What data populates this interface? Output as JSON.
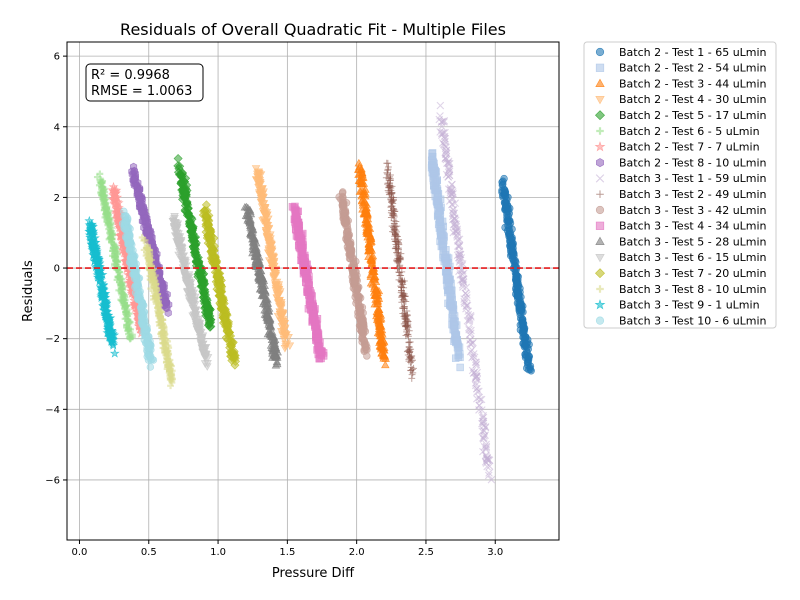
{
  "chart_data": {
    "type": "scatter",
    "title": "Residuals of Overall Quadratic Fit - Multiple Files",
    "xlabel": "Pressure Diff",
    "ylabel": "Residuals",
    "xlim": [
      -0.09,
      3.46
    ],
    "ylim": [
      -7.7,
      6.4
    ],
    "xticks": [
      0.0,
      0.5,
      1.0,
      1.5,
      2.0,
      2.5,
      3.0
    ],
    "xtick_labels": [
      "0.0",
      "0.5",
      "1.0",
      "1.5",
      "2.0",
      "2.5",
      "3.0"
    ],
    "yticks": [
      -6,
      -4,
      -2,
      0,
      2,
      4,
      6
    ],
    "ytick_labels": [
      "−6",
      "−4",
      "−2",
      "0",
      "2",
      "4",
      "6"
    ],
    "grid": true,
    "reference_line": {
      "y": 0,
      "color": "#e41a1c",
      "style": "dashed"
    },
    "annotation": {
      "line1": "R² = 0.9968",
      "line2": "RMSE = 1.0063"
    },
    "legend_position": "outside-right-top",
    "series": [
      {
        "name": "Batch 2 - Test 1 - 65 uLmin",
        "marker": "circle",
        "color": "#1f77b4",
        "cluster": {
          "x_top": 3.03,
          "x_bottom": 3.27,
          "y_top": 3.1,
          "y_bottom": -3.6
        }
      },
      {
        "name": "Batch 2 - Test 2 - 54 uLmin",
        "marker": "square",
        "color": "#aec7e8",
        "cluster": {
          "x_top": 2.52,
          "x_bottom": 2.76,
          "y_top": 3.8,
          "y_bottom": -3.2
        }
      },
      {
        "name": "Batch 2 - Test 3 - 44 uLmin",
        "marker": "triangle-up",
        "color": "#ff7f0e",
        "cluster": {
          "x_top": 2.0,
          "x_bottom": 2.22,
          "y_top": 3.6,
          "y_bottom": -3.3
        }
      },
      {
        "name": "Batch 2 - Test 4 - 30 uLmin",
        "marker": "triangle-down",
        "color": "#ffbb78",
        "cluster": {
          "x_top": 1.26,
          "x_bottom": 1.52,
          "y_top": 3.4,
          "y_bottom": -2.8
        }
      },
      {
        "name": "Batch 2 - Test 5 - 17 uLmin",
        "marker": "diamond",
        "color": "#2ca02c",
        "cluster": {
          "x_top": 0.7,
          "x_bottom": 0.97,
          "y_top": 3.3,
          "y_bottom": -2.1
        }
      },
      {
        "name": "Batch 2 - Test 6 - 5 uLmin",
        "marker": "plus",
        "color": "#98df8a",
        "cluster": {
          "x_top": 0.12,
          "x_bottom": 0.4,
          "y_top": 3.1,
          "y_bottom": -2.5
        }
      },
      {
        "name": "Batch 2 - Test 7 - 7 uLmin",
        "marker": "star",
        "color": "#ff9896",
        "cluster": {
          "x_top": 0.22,
          "x_bottom": 0.47,
          "y_top": 2.8,
          "y_bottom": -2.3
        }
      },
      {
        "name": "Batch 2 - Test 8 - 10 uLmin",
        "marker": "hexagon",
        "color": "#9467bd",
        "cluster": {
          "x_top": 0.36,
          "x_bottom": 0.66,
          "y_top": 3.2,
          "y_bottom": -1.6
        }
      },
      {
        "name": "Batch 3 - Test 1 - 59 uLmin",
        "marker": "x",
        "color": "#c5b0d5",
        "cluster": {
          "x_top": 2.56,
          "x_bottom": 3.0,
          "y_top": 5.7,
          "y_bottom": -7.0
        }
      },
      {
        "name": "Batch 3 - Test 2 - 49 uLmin",
        "marker": "thin-plus",
        "color": "#8c564b",
        "cluster": {
          "x_top": 2.2,
          "x_bottom": 2.42,
          "y_top": 3.6,
          "y_bottom": -3.6
        }
      },
      {
        "name": "Batch 3 - Test 3 - 42 uLmin",
        "marker": "circle",
        "color": "#c49c94",
        "cluster": {
          "x_top": 1.87,
          "x_bottom": 2.09,
          "y_top": 2.6,
          "y_bottom": -2.9
        }
      },
      {
        "name": "Batch 3 - Test 4 - 34 uLmin",
        "marker": "square",
        "color": "#e377c2",
        "cluster": {
          "x_top": 1.53,
          "x_bottom": 1.77,
          "y_top": 2.2,
          "y_bottom": -3.1
        }
      },
      {
        "name": "Batch 3 - Test 5 - 28 uLmin",
        "marker": "triangle-up",
        "color": "#7f7f7f",
        "cluster": {
          "x_top": 1.19,
          "x_bottom": 1.45,
          "y_top": 2.1,
          "y_bottom": -3.2
        }
      },
      {
        "name": "Batch 3 - Test 6 - 15 uLmin",
        "marker": "triangle-down",
        "color": "#c7c7c7",
        "cluster": {
          "x_top": 0.65,
          "x_bottom": 0.95,
          "y_top": 1.9,
          "y_bottom": -3.2
        }
      },
      {
        "name": "Batch 3 - Test 7 - 20 uLmin",
        "marker": "diamond",
        "color": "#bcbd22",
        "cluster": {
          "x_top": 0.88,
          "x_bottom": 1.14,
          "y_top": 2.2,
          "y_bottom": -3.2
        }
      },
      {
        "name": "Batch 3 - Test 8 - 10 uLmin",
        "marker": "plus",
        "color": "#dbdb8d",
        "cluster": {
          "x_top": 0.46,
          "x_bottom": 0.69,
          "y_top": 1.2,
          "y_bottom": -3.7
        }
      },
      {
        "name": "Batch 3 - Test 9 - 1 uLmin",
        "marker": "star",
        "color": "#17becf",
        "cluster": {
          "x_top": 0.06,
          "x_bottom": 0.26,
          "y_top": 1.6,
          "y_bottom": -2.6
        }
      },
      {
        "name": "Batch 3 - Test 10 - 6 uLmin",
        "marker": "circle",
        "color": "#9edae5",
        "cluster": {
          "x_top": 0.3,
          "x_bottom": 0.54,
          "y_top": 2.0,
          "y_bottom": -3.1
        }
      }
    ]
  }
}
